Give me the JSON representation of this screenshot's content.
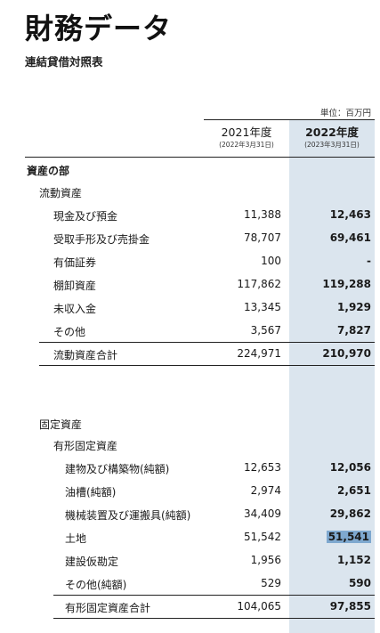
{
  "header": {
    "title": "財務データ",
    "subtitle": "連結貸借対照表",
    "unit": "単位：百万円"
  },
  "columns": [
    {
      "year": "2021年度",
      "date": "(2022年3月31日)"
    },
    {
      "year": "2022年度",
      "date": "(2023年3月31日)"
    }
  ],
  "rows": {
    "assets_heading": {
      "label": "資産の部"
    },
    "current_heading": {
      "label": "流動資産"
    },
    "cash": {
      "label": "現金及び預金",
      "v2021": "11,388",
      "v2022": "12,463"
    },
    "receivables": {
      "label": "受取手形及び売掛金",
      "v2021": "78,707",
      "v2022": "69,461"
    },
    "securities": {
      "label": "有価証券",
      "v2021": "100",
      "v2022": "-"
    },
    "inventory": {
      "label": "棚卸資産",
      "v2021": "117,862",
      "v2022": "119,288"
    },
    "accrued": {
      "label": "未収入金",
      "v2021": "13,345",
      "v2022": "1,929"
    },
    "other_current": {
      "label": "その他",
      "v2021": "3,567",
      "v2022": "7,827"
    },
    "current_total": {
      "label": "流動資産合計",
      "v2021": "224,971",
      "v2022": "210,970"
    },
    "fixed_heading": {
      "label": "固定資産"
    },
    "tangible_heading": {
      "label": "有形固定資産"
    },
    "buildings": {
      "label": "建物及び構築物(純額)",
      "v2021": "12,653",
      "v2022": "12,056"
    },
    "tanks": {
      "label": "油槽(純額)",
      "v2021": "2,974",
      "v2022": "2,651"
    },
    "machinery": {
      "label": "機械装置及び運搬具(純額)",
      "v2021": "34,409",
      "v2022": "29,862"
    },
    "land": {
      "label": "土地",
      "v2021": "51,542",
      "v2022": "51,541"
    },
    "construction": {
      "label": "建設仮勘定",
      "v2021": "1,956",
      "v2022": "1,152"
    },
    "other_tangible": {
      "label": "その他(純額)",
      "v2021": "529",
      "v2022": "590"
    },
    "tangible_total": {
      "label": "有形固定資産合計",
      "v2021": "104,065",
      "v2022": "97,855"
    }
  },
  "colors": {
    "column_band": "#dbe5ee",
    "selection_highlight": "#7ea8cf"
  }
}
